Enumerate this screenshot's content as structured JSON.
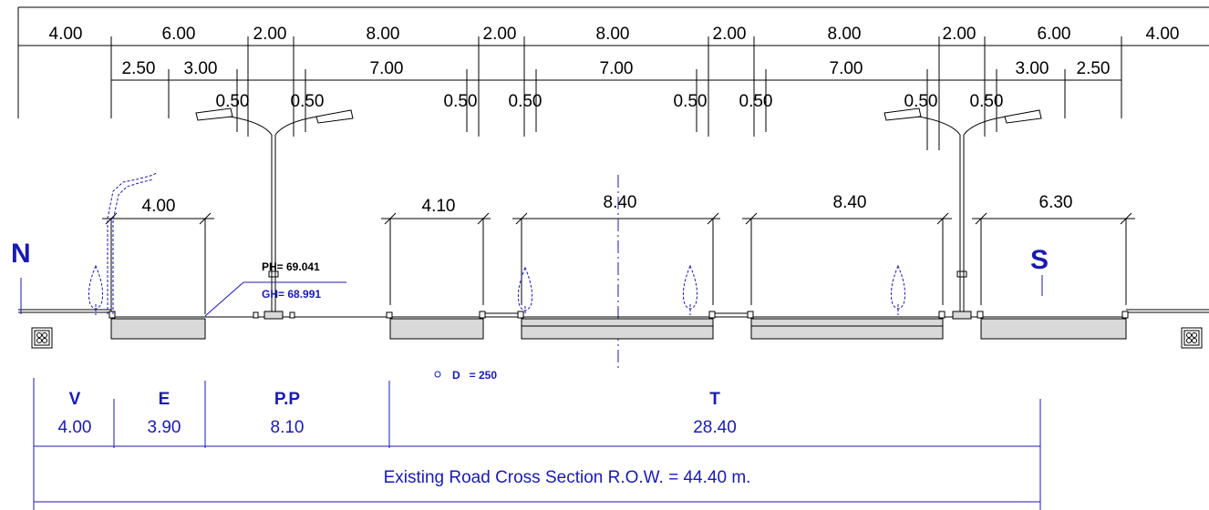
{
  "top_dims": {
    "row1": [
      "4.00",
      "6.00",
      "2.00",
      "8.00",
      "2.00",
      "8.00",
      "2.00",
      "8.00",
      "2.00",
      "6.00",
      "4.00"
    ],
    "row2": [
      "2.50",
      "3.00",
      "7.00",
      "7.00",
      "7.00",
      "3.00",
      "2.50"
    ],
    "row3": [
      "0.50",
      "0.50",
      "0.50",
      "0.50",
      "0.50",
      "0.50",
      "0.50",
      "0.50"
    ]
  },
  "segment_dims": [
    "4.00",
    "4.10",
    "8.40",
    "8.40",
    "6.30"
  ],
  "direction": {
    "north": "N",
    "south": "S"
  },
  "levels": {
    "ph": "PH= 69.041",
    "gh": "GH= 68.991"
  },
  "pipe_label": "D   = 250",
  "table": {
    "codes": [
      "V",
      "E",
      "P.P",
      "T"
    ],
    "values": [
      "4.00",
      "3.90",
      "8.10",
      "28.40"
    ],
    "caption": "Existing Road Cross Section R.O.W. = 44.40 m."
  },
  "colors": {
    "line": "#000000",
    "annotation": "#1a1ab4",
    "pavement": "#d9d9d9",
    "tree": "#1a1ab4"
  }
}
